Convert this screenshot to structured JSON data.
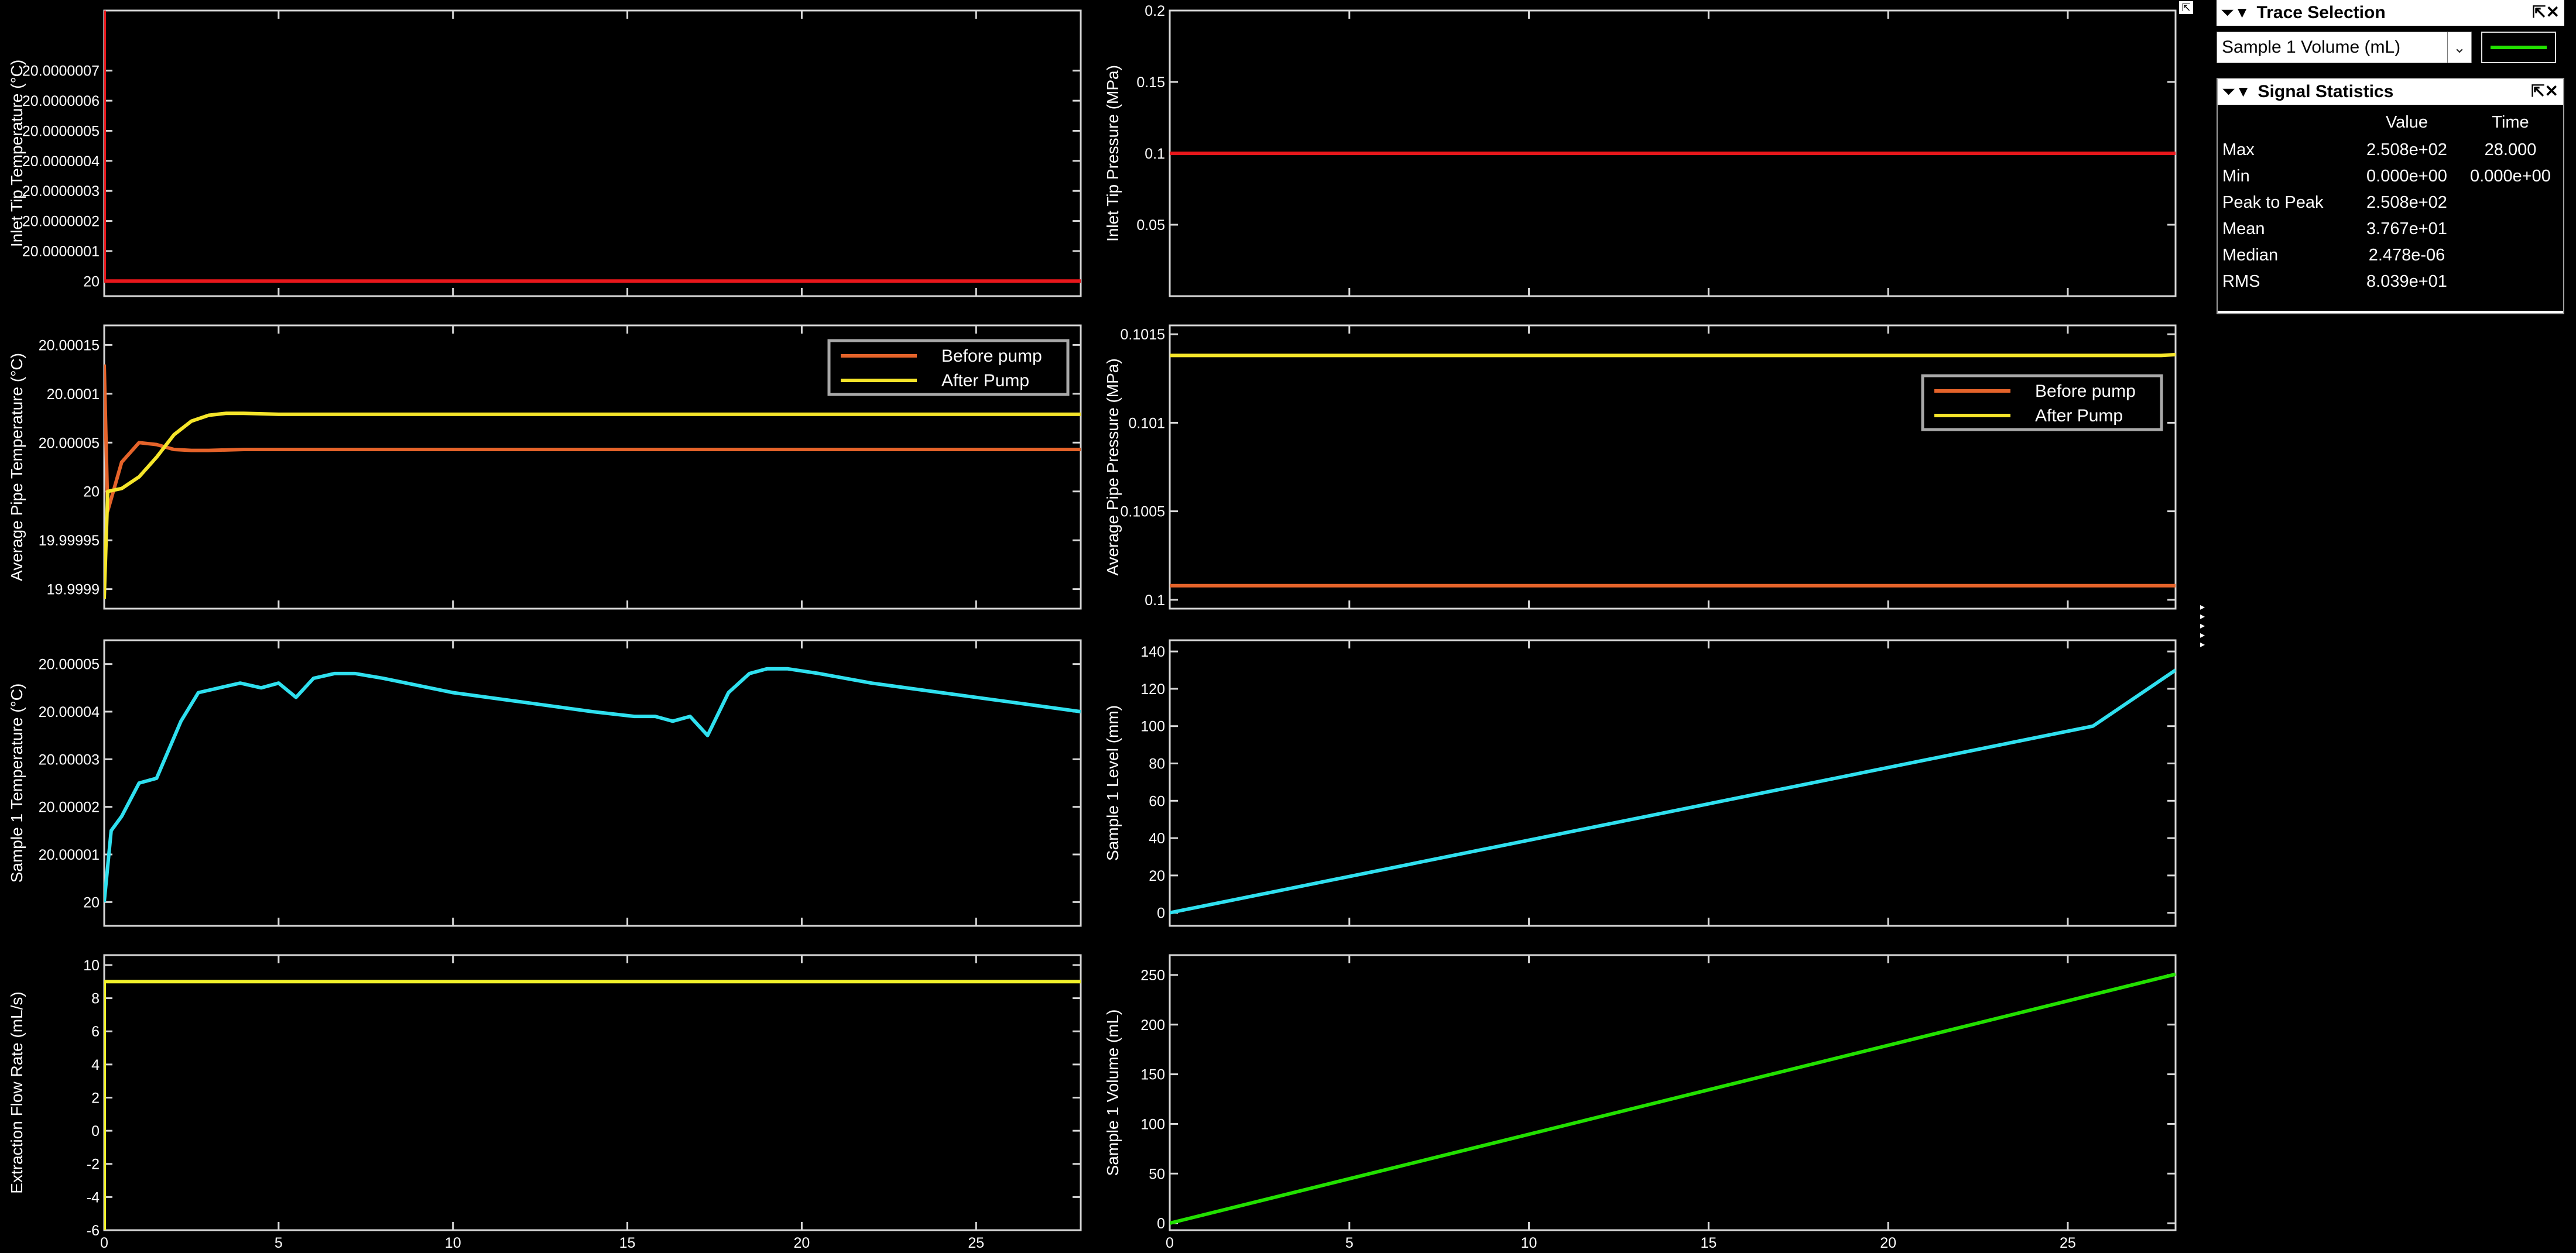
{
  "trace_selection": {
    "title": "Trace Selection",
    "selected": "Sample 1 Volume (mL)",
    "trace_color": "#22e000",
    "header_controls": "⏷▼",
    "window_controls": "⇱✕"
  },
  "signal_statistics": {
    "title": "Signal Statistics",
    "header_controls": "⏷▼",
    "window_controls": "⇱✕",
    "columns": [
      "",
      "Value",
      "Time"
    ],
    "rows": [
      {
        "label": "Max",
        "value": "2.508e+02",
        "time": "28.000"
      },
      {
        "label": "Min",
        "value": "0.000e+00",
        "time": "0.000e+00"
      },
      {
        "label": "Peak to Peak",
        "value": "2.508e+02",
        "time": ""
      },
      {
        "label": "Mean",
        "value": "3.767e+01",
        "time": ""
      },
      {
        "label": "Median",
        "value": "2.478e-06",
        "time": ""
      },
      {
        "label": "RMS",
        "value": "8.039e+01",
        "time": ""
      }
    ]
  },
  "colors": {
    "red": "#e8171b",
    "orange": "#e5632a",
    "yellow": "#f5e52a",
    "cyan": "#2fe0ef",
    "yellow_flow": "#f2f22b",
    "green": "#22e000"
  },
  "chart_data": [
    {
      "type": "line",
      "position": "left-1",
      "ylabel": "Inlet Tip Temperature (°C)",
      "xlim": [
        0,
        28
      ],
      "ylim": [
        19.99999995,
        20.0000009
      ],
      "yticks": [
        20,
        20.0000001,
        20.0000002,
        20.0000003,
        20.0000004,
        20.0000005,
        20.0000006,
        20.0000007
      ],
      "ytick_labels": [
        "20",
        "20.0000001",
        "20.0000002",
        "20.0000003",
        "20.0000004",
        "20.0000005",
        "20.0000006",
        "20.0000007"
      ],
      "xticks": [
        0,
        5,
        10,
        15,
        20,
        25
      ],
      "xtick_labels": [],
      "series": [
        {
          "color": "red",
          "x": [
            0,
            0,
            28
          ],
          "y": [
            20.0000009,
            20,
            20
          ]
        }
      ]
    },
    {
      "type": "line",
      "position": "right-1",
      "ylabel": "Inlet Tip Pressure (MPa)",
      "xlim": [
        0,
        28
      ],
      "ylim": [
        0,
        0.2
      ],
      "yticks": [
        0.05,
        0.1,
        0.15,
        0.2
      ],
      "ytick_labels": [
        "0.05",
        "0.1",
        "0.15",
        "0.2"
      ],
      "xticks": [
        0,
        5,
        10,
        15,
        20,
        25
      ],
      "xtick_labels": [],
      "series": [
        {
          "color": "red",
          "x": [
            0,
            28
          ],
          "y": [
            0.1,
            0.1
          ]
        }
      ]
    },
    {
      "type": "line",
      "position": "left-2",
      "ylabel": "Average Pipe Temperature (°C)",
      "xlim": [
        0,
        28
      ],
      "ylim": [
        19.99988,
        20.00017
      ],
      "yticks": [
        19.9999,
        19.99995,
        20,
        20.00005,
        20.0001,
        20.00015
      ],
      "ytick_labels": [
        "19.9999",
        "19.99995",
        "20",
        "20.00005",
        "20.0001",
        "20.00015"
      ],
      "xticks": [
        0,
        5,
        10,
        15,
        20,
        25
      ],
      "xtick_labels": [],
      "legend": {
        "placement": "top-right",
        "entries": [
          "Before pump",
          "After Pump"
        ]
      },
      "series": [
        {
          "name": "Before pump",
          "color": "orange",
          "x": [
            0,
            0.1,
            0.5,
            1.0,
            1.5,
            2.0,
            2.5,
            3,
            4,
            6,
            10,
            15,
            20,
            25,
            28
          ],
          "y": [
            20.00013,
            19.99998,
            20.00003,
            20.00005,
            20.000048,
            20.000043,
            20.000042,
            20.000042,
            20.000043,
            20.000043,
            20.000043,
            20.000043,
            20.000043,
            20.000043,
            20.000043
          ]
        },
        {
          "name": "After Pump",
          "color": "yellow",
          "x": [
            0,
            0.1,
            0.5,
            1.0,
            1.5,
            2.0,
            2.5,
            3.0,
            3.5,
            4.0,
            5,
            6,
            10,
            15,
            20,
            25,
            28
          ],
          "y": [
            19.99989,
            20.0,
            20.000003,
            20.000015,
            20.000035,
            20.000058,
            20.000072,
            20.000078,
            20.00008,
            20.00008,
            20.000079,
            20.000079,
            20.000079,
            20.000079,
            20.000079,
            20.000079,
            20.000079
          ]
        }
      ]
    },
    {
      "type": "line",
      "position": "right-2",
      "ylabel": "Average Pipe Pressure (MPa)",
      "xlim": [
        0,
        28
      ],
      "ylim": [
        0.09995,
        0.10155
      ],
      "yticks": [
        0.1,
        0.1005,
        0.101,
        0.1015
      ],
      "ytick_labels": [
        "0.1",
        "0.1005",
        "0.101",
        "0.1015"
      ],
      "xticks": [
        0,
        5,
        10,
        15,
        20,
        25
      ],
      "xtick_labels": [],
      "legend": {
        "placement": "right",
        "entries": [
          "Before pump",
          "After Pump"
        ]
      },
      "series": [
        {
          "name": "Before pump",
          "color": "orange",
          "x": [
            0,
            28
          ],
          "y": [
            0.10008,
            0.10008
          ]
        },
        {
          "name": "After Pump",
          "color": "yellow",
          "x": [
            0,
            27.6,
            28
          ],
          "y": [
            0.10138,
            0.10138,
            0.101385
          ]
        }
      ]
    },
    {
      "type": "line",
      "position": "left-3",
      "ylabel": "Sample 1 Temperature (°C)",
      "xlim": [
        0,
        28
      ],
      "ylim": [
        19.999995,
        20.000055
      ],
      "yticks": [
        20,
        20.00001,
        20.00002,
        20.00003,
        20.00004,
        20.00005
      ],
      "ytick_labels": [
        "20",
        "20.00001",
        "20.00002",
        "20.00003",
        "20.00004",
        "20.00005"
      ],
      "xticks": [
        0,
        5,
        10,
        15,
        20,
        25
      ],
      "xtick_labels": [],
      "series": [
        {
          "color": "cyan",
          "x": [
            0,
            0.2,
            0.5,
            1.0,
            1.5,
            2.2,
            2.7,
            3.3,
            3.9,
            4.5,
            5.0,
            5.5,
            6.0,
            6.6,
            7.2,
            8,
            10,
            12,
            14,
            15.2,
            15.8,
            16.3,
            16.8,
            17.3,
            17.9,
            18.5,
            19.0,
            19.6,
            20.5,
            22,
            24,
            26,
            28
          ],
          "y": [
            20.0,
            20.000015,
            20.000018,
            20.000025,
            20.000026,
            20.000038,
            20.000044,
            20.000045,
            20.000046,
            20.000045,
            20.000046,
            20.000043,
            20.000047,
            20.000048,
            20.000048,
            20.000047,
            20.000044,
            20.000042,
            20.00004,
            20.000039,
            20.000039,
            20.000038,
            20.000039,
            20.000035,
            20.000044,
            20.000048,
            20.000049,
            20.000049,
            20.000048,
            20.000046,
            20.000044,
            20.000042,
            20.00004
          ]
        }
      ]
    },
    {
      "type": "line",
      "position": "right-3",
      "ylabel": "Sample 1 Level (mm)",
      "xlim": [
        0,
        28
      ],
      "ylim": [
        -7,
        146
      ],
      "yticks": [
        0,
        20,
        40,
        60,
        80,
        100,
        120,
        140
      ],
      "ytick_labels": [
        "0",
        "20",
        "40",
        "60",
        "80",
        "100",
        "120",
        "140"
      ],
      "xticks": [
        0,
        5,
        10,
        15,
        20,
        25
      ],
      "xtick_labels": [],
      "series": [
        {
          "color": "cyan",
          "x": [
            0,
            25.7,
            28
          ],
          "y": [
            0,
            100,
            130
          ]
        }
      ]
    },
    {
      "type": "line",
      "position": "left-4",
      "ylabel": "Extraction Flow Rate (mL/s)",
      "xlim": [
        0,
        28
      ],
      "ylim": [
        -6,
        10.6
      ],
      "yticks": [
        -6,
        -4,
        -2,
        0,
        2,
        4,
        6,
        8,
        10
      ],
      "ytick_labels": [
        "-6",
        "-4",
        "-2",
        "0",
        "2",
        "4",
        "6",
        "8",
        "10"
      ],
      "xticks": [
        0,
        5,
        10,
        15,
        20,
        25
      ],
      "xtick_labels": [
        "0",
        "5",
        "10",
        "15",
        "20",
        "25"
      ],
      "series": [
        {
          "color": "yellow_flow",
          "x": [
            0,
            0,
            28
          ],
          "y": [
            -6,
            9,
            9
          ]
        }
      ]
    },
    {
      "type": "line",
      "position": "right-4",
      "ylabel": "Sample 1 Volume (mL)",
      "xlim": [
        0,
        28
      ],
      "ylim": [
        -7,
        270
      ],
      "yticks": [
        0,
        50,
        100,
        150,
        200,
        250
      ],
      "ytick_labels": [
        "0",
        "50",
        "100",
        "150",
        "200",
        "250"
      ],
      "xticks": [
        0,
        5,
        10,
        15,
        20,
        25
      ],
      "xtick_labels": [
        "0",
        "5",
        "10",
        "15",
        "20",
        "25"
      ],
      "series": [
        {
          "color": "green",
          "x": [
            0,
            28
          ],
          "y": [
            0,
            250.8
          ]
        }
      ]
    }
  ]
}
